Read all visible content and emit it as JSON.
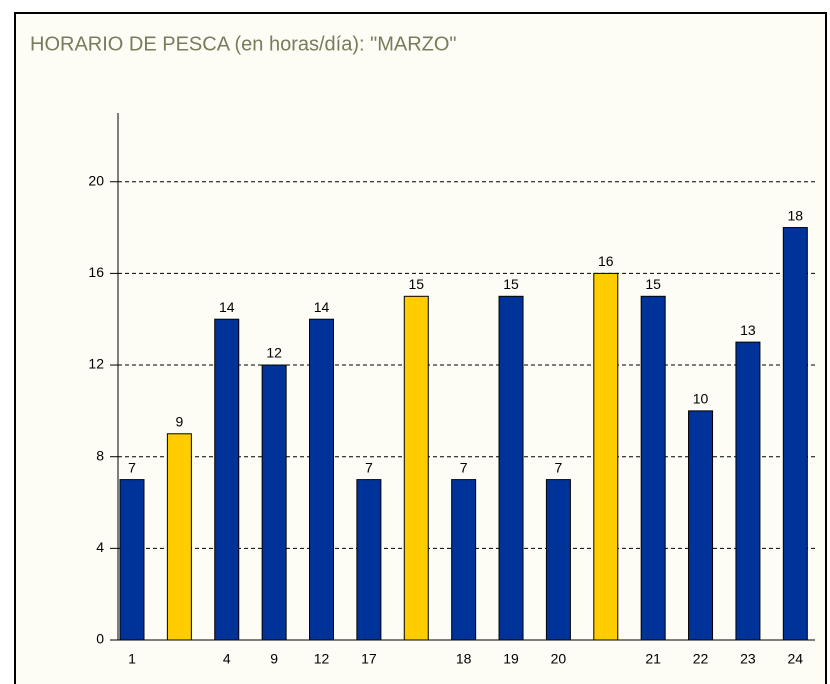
{
  "chart_data": {
    "type": "bar",
    "title": "HORARIO DE PESCA (en horas/día): \"MARZO\"",
    "categories": [
      "1",
      null,
      "4",
      "9",
      "12",
      "17",
      null,
      "18",
      "19",
      "20",
      null,
      "21",
      "22",
      "23",
      "24"
    ],
    "values": [
      7,
      9,
      14,
      12,
      14,
      7,
      15,
      7,
      15,
      7,
      16,
      15,
      10,
      13,
      18
    ],
    "colors": [
      "#003399",
      "#ffcc00",
      "#003399",
      "#003399",
      "#003399",
      "#003399",
      "#ffcc00",
      "#003399",
      "#003399",
      "#003399",
      "#ffcc00",
      "#003399",
      "#003399",
      "#003399",
      "#003399"
    ],
    "ylim": [
      0,
      23
    ],
    "yticks": [
      0,
      4,
      8,
      12,
      16,
      20
    ],
    "grid": true
  }
}
